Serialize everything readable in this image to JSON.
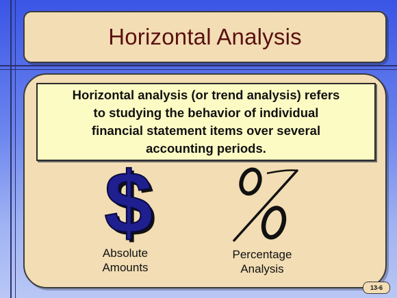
{
  "slide": {
    "title": "Horizontal Analysis",
    "definition": [
      "Horizontal analysis (or trend analysis) refers",
      "to studying the behavior of individual",
      "financial statement items over several",
      "accounting periods."
    ],
    "items": [
      {
        "symbol": "$",
        "icon": "dollar-sign-icon",
        "label_lines": [
          "Absolute",
          "Amounts"
        ]
      },
      {
        "symbol": "%",
        "icon": "percent-sign-icon",
        "label_lines": [
          "Percentage",
          "Analysis"
        ]
      }
    ],
    "page_number": "13-6"
  },
  "colors": {
    "background_top": "#3a55e6",
    "background_bottom": "#b9c7f6",
    "panel": "#f2ddb4",
    "definition_box": "#fdfbc4",
    "title_text": "#5a1010",
    "dollar": "#1f1f8f"
  }
}
